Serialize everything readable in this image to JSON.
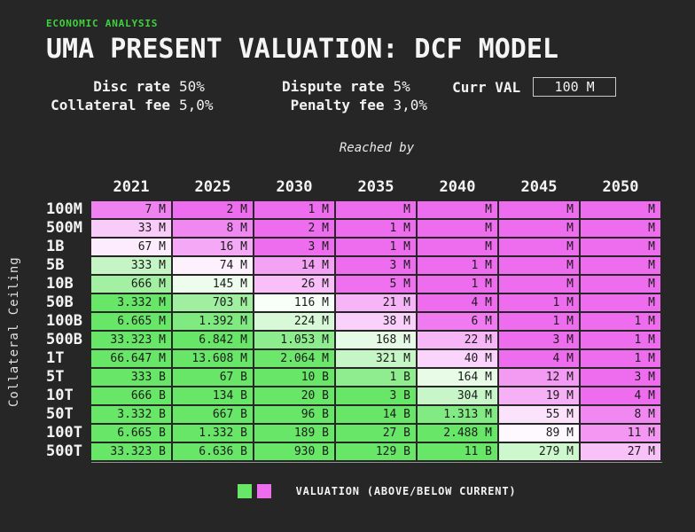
{
  "colors": {
    "background": "#262626",
    "accent_green": "#3ed23e",
    "above": "#68e668",
    "below": "#ee6cee",
    "neutral": "#ffffff",
    "cell_text": "#1b1b1b"
  },
  "header": {
    "eyebrow": "ECONOMIC ANALYSIS",
    "title": "UMA PRESENT VALUATION: DCF MODEL"
  },
  "params": {
    "disc_rate": {
      "label": "Disc rate",
      "value": "50%"
    },
    "collateral_fee": {
      "label": "Collateral fee",
      "value": "5,0%"
    },
    "dispute_rate": {
      "label": "Dispute rate",
      "value": "5%"
    },
    "penalty_fee": {
      "label": "Penalty fee",
      "value": "3,0%"
    },
    "curr_val": {
      "label": "Curr VAL",
      "value": "100 M"
    }
  },
  "legend": {
    "label": "VALUATION (ABOVE/BELOW CURRENT)"
  },
  "chart_data": {
    "type": "heatmap",
    "title": "UMA PRESENT VALUATION: DCF MODEL",
    "xlabel": "Reached by",
    "ylabel": "Collateral Ceiling",
    "x": [
      "2021",
      "2025",
      "2030",
      "2035",
      "2040",
      "2045",
      "2050"
    ],
    "y": [
      "100M",
      "500M",
      "1B",
      "5B",
      "10B",
      "50B",
      "100B",
      "500B",
      "1T",
      "5T",
      "10T",
      "50T",
      "100T",
      "500T"
    ],
    "values_display": [
      [
        "7 M",
        "2 M",
        "1 M",
        "M",
        "M",
        "M",
        "M"
      ],
      [
        "33 M",
        "8 M",
        "2 M",
        "1 M",
        "M",
        "M",
        "M"
      ],
      [
        "67 M",
        "16 M",
        "3 M",
        "1 M",
        "M",
        "M",
        "M"
      ],
      [
        "333 M",
        "74 M",
        "14 M",
        "3 M",
        "1 M",
        "M",
        "M"
      ],
      [
        "666 M",
        "145 M",
        "26 M",
        "5 M",
        "1 M",
        "M",
        "M"
      ],
      [
        "3.332 M",
        "703 M",
        "116 M",
        "21 M",
        "4 M",
        "1 M",
        "M"
      ],
      [
        "6.665 M",
        "1.392 M",
        "224 M",
        "38 M",
        "6 M",
        "1 M",
        "1 M"
      ],
      [
        "33.323 M",
        "6.842 M",
        "1.053 M",
        "168 M",
        "22 M",
        "3 M",
        "1 M"
      ],
      [
        "66.647 M",
        "13.608 M",
        "2.064 M",
        "321 M",
        "40 M",
        "4 M",
        "1 M"
      ],
      [
        "333 B",
        "67 B",
        "10 B",
        "1 B",
        "164 M",
        "12 M",
        "3 M"
      ],
      [
        "666 B",
        "134 B",
        "20 B",
        "3 B",
        "304 M",
        "19 M",
        "4 M"
      ],
      [
        "3.332 B",
        "667 B",
        "96 B",
        "14 B",
        "1.313 M",
        "55 M",
        "8 M"
      ],
      [
        "6.665 B",
        "1.332 B",
        "189 B",
        "27 B",
        "2.488 M",
        "89 M",
        "11 M"
      ],
      [
        "33.323 B",
        "6.636 B",
        "930 B",
        "129 B",
        "11 B",
        "279 M",
        "27 M"
      ]
    ],
    "values_millions": [
      [
        7,
        2,
        1,
        0,
        0,
        0,
        0
      ],
      [
        33,
        8,
        2,
        1,
        0,
        0,
        0
      ],
      [
        67,
        16,
        3,
        1,
        0,
        0,
        0
      ],
      [
        333,
        74,
        14,
        3,
        1,
        0,
        0
      ],
      [
        666,
        145,
        26,
        5,
        1,
        0,
        0
      ],
      [
        3332,
        703,
        116,
        21,
        4,
        1,
        0
      ],
      [
        6665,
        1392,
        224,
        38,
        6,
        1,
        1
      ],
      [
        33323,
        6842,
        1053,
        168,
        22,
        3,
        1
      ],
      [
        66647,
        13608,
        2064,
        321,
        40,
        4,
        1
      ],
      [
        333000,
        67000,
        10000,
        1000,
        164,
        12,
        3
      ],
      [
        666000,
        134000,
        20000,
        3000,
        304,
        19,
        4
      ],
      [
        3332000,
        667000,
        96000,
        14000,
        1313,
        55,
        8
      ],
      [
        6665000,
        1332000,
        189000,
        27000,
        2488,
        89,
        11
      ],
      [
        33323000,
        6636000,
        930000,
        129000,
        11000,
        279,
        27
      ]
    ],
    "legend_entries": [
      "above current",
      "below current"
    ],
    "colorscale": {
      "above": "#68e668",
      "neutral": "#ffffff",
      "below": "#ee6cee",
      "reference_millions": 100,
      "log_clamp": 1.35
    }
  }
}
